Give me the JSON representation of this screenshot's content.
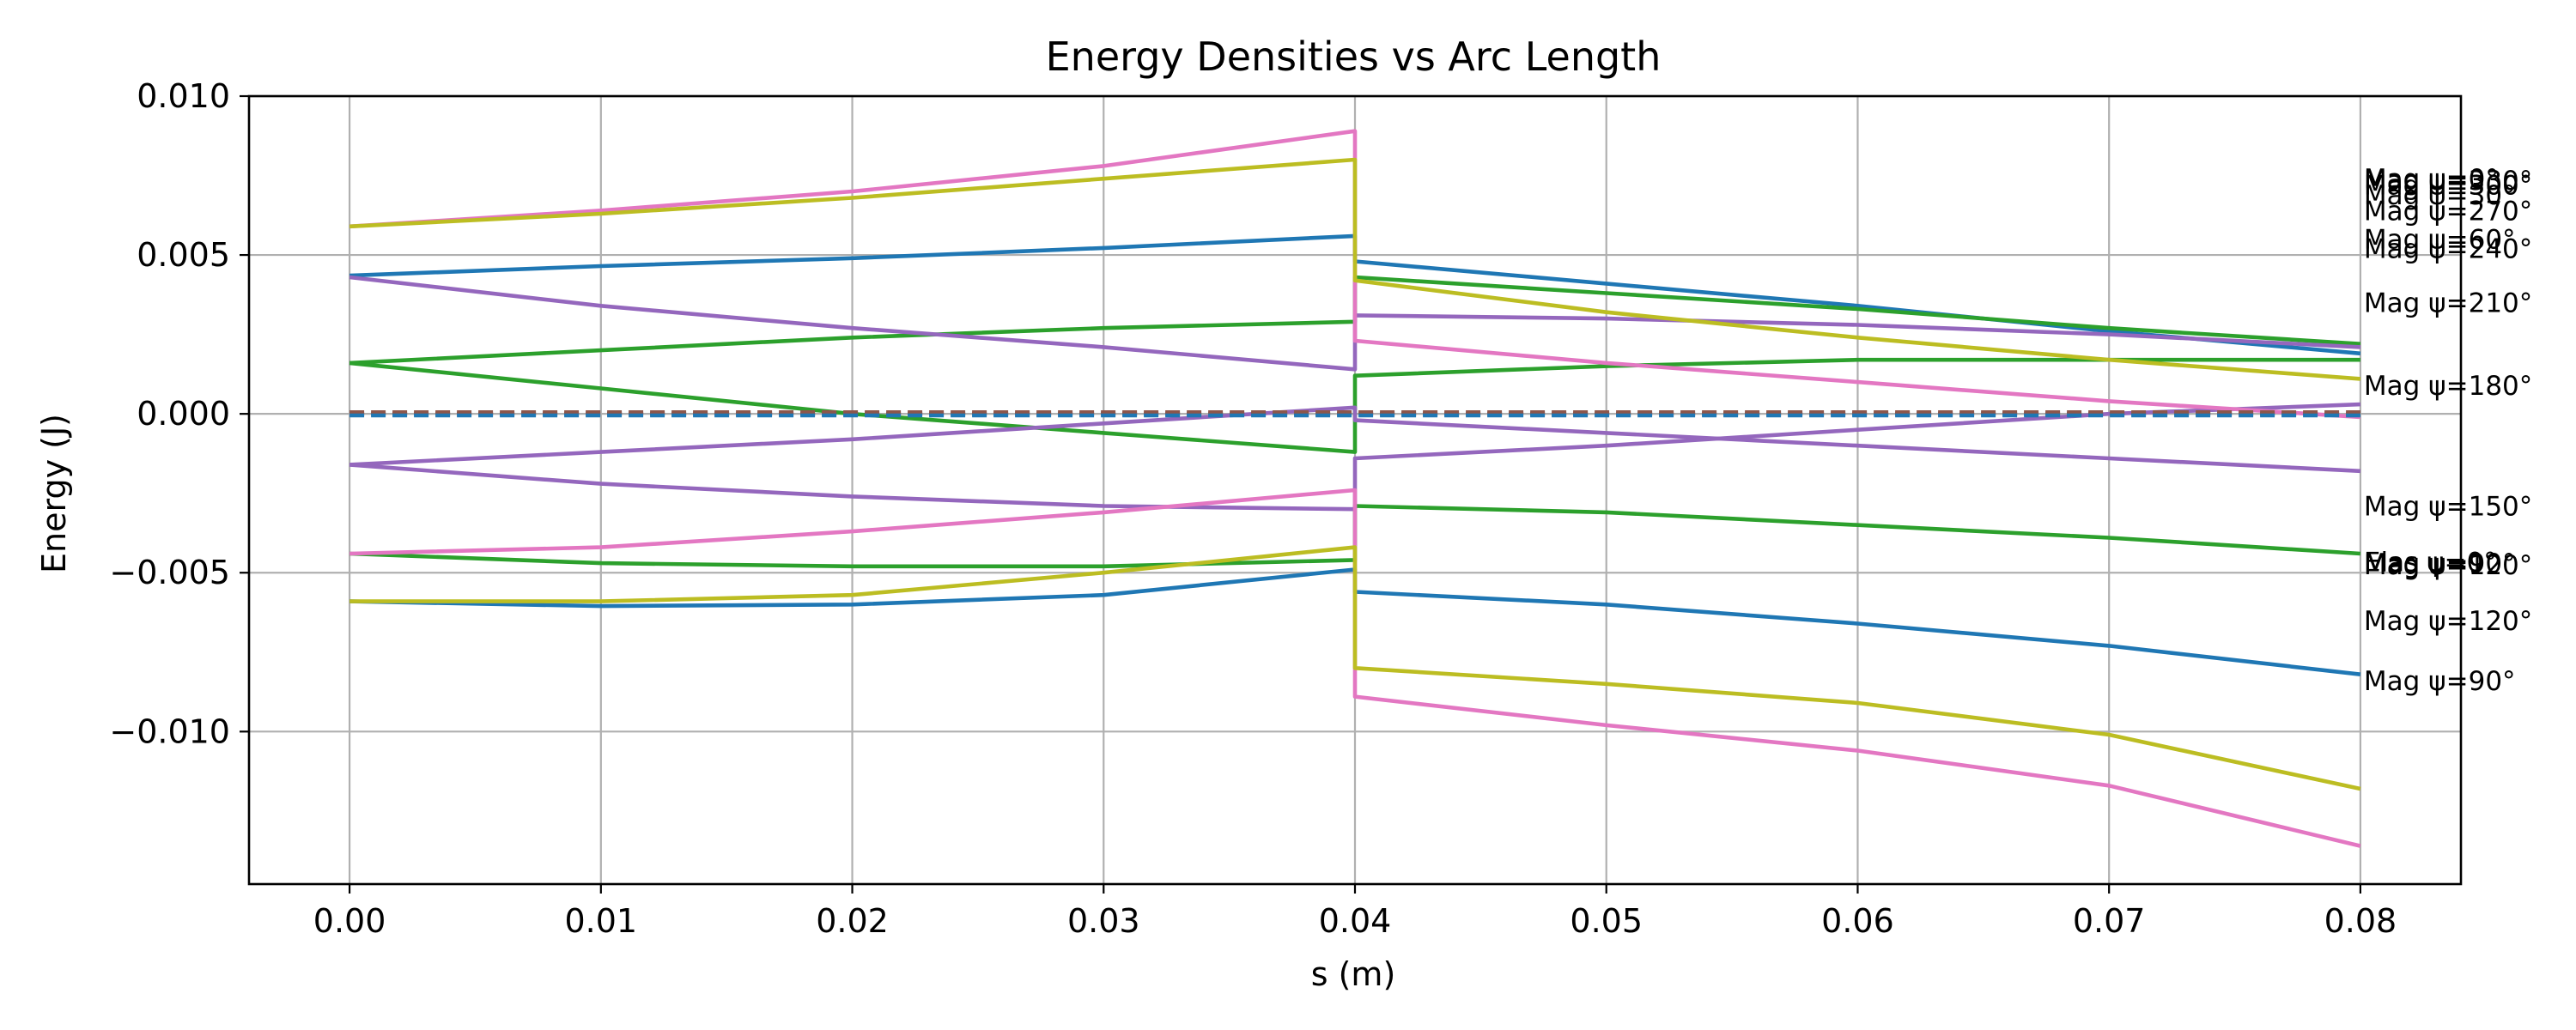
{
  "chart_data": {
    "type": "line",
    "title": "Energy Densities vs Arc Length",
    "xlabel": "s (m)",
    "ylabel": "Energy (J)",
    "xlim": [
      -0.004,
      0.084
    ],
    "ylim": [
      -0.0148,
      0.01
    ],
    "xticks": [
      0.0,
      0.01,
      0.02,
      0.03,
      0.04,
      0.05,
      0.06,
      0.07,
      0.08
    ],
    "xtick_labels": [
      "0.00",
      "0.01",
      "0.02",
      "0.03",
      "0.04",
      "0.05",
      "0.06",
      "0.07",
      "0.08"
    ],
    "yticks": [
      0.01,
      0.005,
      0.0,
      -0.005,
      -0.01
    ],
    "ytick_labels": [
      "0.010",
      "0.005",
      "0.000",
      "−0.005",
      "−0.010"
    ],
    "grid": true,
    "legend": "none",
    "colors": {
      "blue": "#1f77b4",
      "green": "#2ca02c",
      "purple": "#9467bd",
      "pink": "#e377c2",
      "olive": "#bcbd22",
      "brown": "#8c564b"
    },
    "series": [
      {
        "color": "blue",
        "x": [
          0,
          0.01,
          0.02,
          0.03,
          0.04,
          0.04,
          0.05,
          0.06,
          0.07,
          0.08
        ],
        "y": [
          0.00435,
          0.00465,
          0.0049,
          0.00522,
          0.0056,
          0.0048,
          0.0041,
          0.0034,
          0.0026,
          0.0019
        ]
      },
      {
        "color": "blue",
        "x": [
          0,
          0.01,
          0.02,
          0.03,
          0.04,
          0.04,
          0.05,
          0.06,
          0.07,
          0.08
        ],
        "y": [
          -0.0059,
          -0.00605,
          -0.006,
          -0.0057,
          -0.0049,
          -0.0056,
          -0.006,
          -0.0066,
          -0.0073,
          -0.0082
        ]
      },
      {
        "color": "green",
        "x": [
          0,
          0.01,
          0.02,
          0.03,
          0.04,
          0.04,
          0.05,
          0.06,
          0.07,
          0.08
        ],
        "y": [
          0.0016,
          0.002,
          0.0024,
          0.0027,
          0.0029,
          0.0043,
          0.0038,
          0.0033,
          0.0027,
          0.0022
        ]
      },
      {
        "color": "green",
        "x": [
          0,
          0.01,
          0.02,
          0.03,
          0.04,
          0.04,
          0.05,
          0.06,
          0.07,
          0.08
        ],
        "y": [
          0.0016,
          0.0008,
          0.0,
          -0.0006,
          -0.0012,
          0.0012,
          0.0015,
          0.0017,
          0.0017,
          0.0017
        ]
      },
      {
        "color": "green",
        "x": [
          0,
          0.01,
          0.02,
          0.03,
          0.04,
          0.04,
          0.05,
          0.06,
          0.07,
          0.08
        ],
        "y": [
          -0.0044,
          -0.0047,
          -0.0048,
          -0.0048,
          -0.0046,
          -0.0029,
          -0.0031,
          -0.0035,
          -0.0039,
          -0.0044
        ]
      },
      {
        "color": "purple",
        "x": [
          0,
          0.01,
          0.02,
          0.03,
          0.04,
          0.04,
          0.05,
          0.06,
          0.07,
          0.08
        ],
        "y": [
          0.0043,
          0.0034,
          0.0027,
          0.0021,
          0.0014,
          0.0031,
          0.003,
          0.0028,
          0.0025,
          0.0021
        ]
      },
      {
        "color": "purple",
        "x": [
          0,
          0.01,
          0.02,
          0.03,
          0.04,
          0.04,
          0.05,
          0.06,
          0.07,
          0.08
        ],
        "y": [
          -0.0016,
          -0.0012,
          -0.0008,
          -0.0003,
          0.0002,
          -0.0002,
          -0.0006,
          -0.001,
          -0.0014,
          -0.0018
        ]
      },
      {
        "color": "purple",
        "x": [
          0,
          0.01,
          0.02,
          0.03,
          0.04,
          0.04,
          0.05,
          0.06,
          0.07,
          0.08
        ],
        "y": [
          -0.0016,
          -0.0022,
          -0.0026,
          -0.0029,
          -0.003,
          -0.0014,
          -0.001,
          -0.0005,
          0.0,
          0.0003
        ]
      },
      {
        "color": "pink",
        "x": [
          0,
          0.01,
          0.02,
          0.03,
          0.04,
          0.04,
          0.05,
          0.06,
          0.07,
          0.08
        ],
        "y": [
          0.0059,
          0.0064,
          0.007,
          0.0078,
          0.0089,
          0.0023,
          0.0016,
          0.001,
          0.0004,
          -0.0001
        ]
      },
      {
        "color": "pink",
        "x": [
          0,
          0.01,
          0.02,
          0.03,
          0.04,
          0.04,
          0.05,
          0.06,
          0.07,
          0.08
        ],
        "y": [
          -0.0044,
          -0.0042,
          -0.0037,
          -0.0031,
          -0.0024,
          -0.0089,
          -0.0098,
          -0.0106,
          -0.0117,
          -0.0136
        ]
      },
      {
        "color": "olive",
        "x": [
          0,
          0.01,
          0.02,
          0.03,
          0.04,
          0.04,
          0.05,
          0.06,
          0.07,
          0.08
        ],
        "y": [
          0.0059,
          0.0063,
          0.0068,
          0.0074,
          0.008,
          0.0042,
          0.0032,
          0.0024,
          0.0017,
          0.0011
        ]
      },
      {
        "color": "olive",
        "x": [
          0,
          0.01,
          0.02,
          0.03,
          0.04,
          0.04,
          0.05,
          0.06,
          0.07,
          0.08
        ],
        "y": [
          -0.0059,
          -0.0059,
          -0.0057,
          -0.005,
          -0.0042,
          -0.008,
          -0.0085,
          -0.0091,
          -0.0101,
          -0.0118
        ]
      },
      {
        "color": "brown",
        "dashed": true,
        "x": [
          0,
          0.08
        ],
        "y": [
          0.0,
          0.0
        ]
      },
      {
        "color": "brown",
        "dashed": true,
        "x": [
          0,
          0.08
        ],
        "y": [
          5e-05,
          5e-05
        ]
      },
      {
        "color": "blue",
        "dashed": true,
        "x": [
          0,
          0.08
        ],
        "y": [
          -5e-05,
          -5e-05
        ]
      }
    ],
    "annotations": [
      {
        "text": "Mag ψ=0°",
        "x": 0.08,
        "y": 0.0074
      },
      {
        "text": "Mag ψ=330°",
        "x": 0.08,
        "y": 0.00735
      },
      {
        "text": "Mag ψ=300°",
        "x": 0.08,
        "y": 0.0072
      },
      {
        "text": "Mag ψ=30°",
        "x": 0.08,
        "y": 0.0069
      },
      {
        "text": "Mag ψ=270°",
        "x": 0.08,
        "y": 0.0064
      },
      {
        "text": "Mag ψ=60°",
        "x": 0.08,
        "y": 0.0055
      },
      {
        "text": "Mag ψ=240°",
        "x": 0.08,
        "y": 0.0052
      },
      {
        "text": "Mag ψ=210°",
        "x": 0.08,
        "y": 0.0035
      },
      {
        "text": "Mag ψ=180°",
        "x": 0.08,
        "y": 0.0009
      },
      {
        "text": "Mag ψ=150°",
        "x": 0.08,
        "y": -0.0029
      },
      {
        "text": "Elas ψ=0°",
        "x": 0.08,
        "y": -0.00465
      },
      {
        "text": "Mag ψ=90°",
        "x": 0.08,
        "y": -0.0047
      },
      {
        "text": "Mag ψ=120°",
        "x": 0.08,
        "y": -0.00475
      },
      {
        "text": "Mag ψ=120°",
        "x": 0.08,
        "y": -0.0065
      },
      {
        "text": "Mag ψ=90°",
        "x": 0.08,
        "y": -0.0084
      }
    ]
  }
}
